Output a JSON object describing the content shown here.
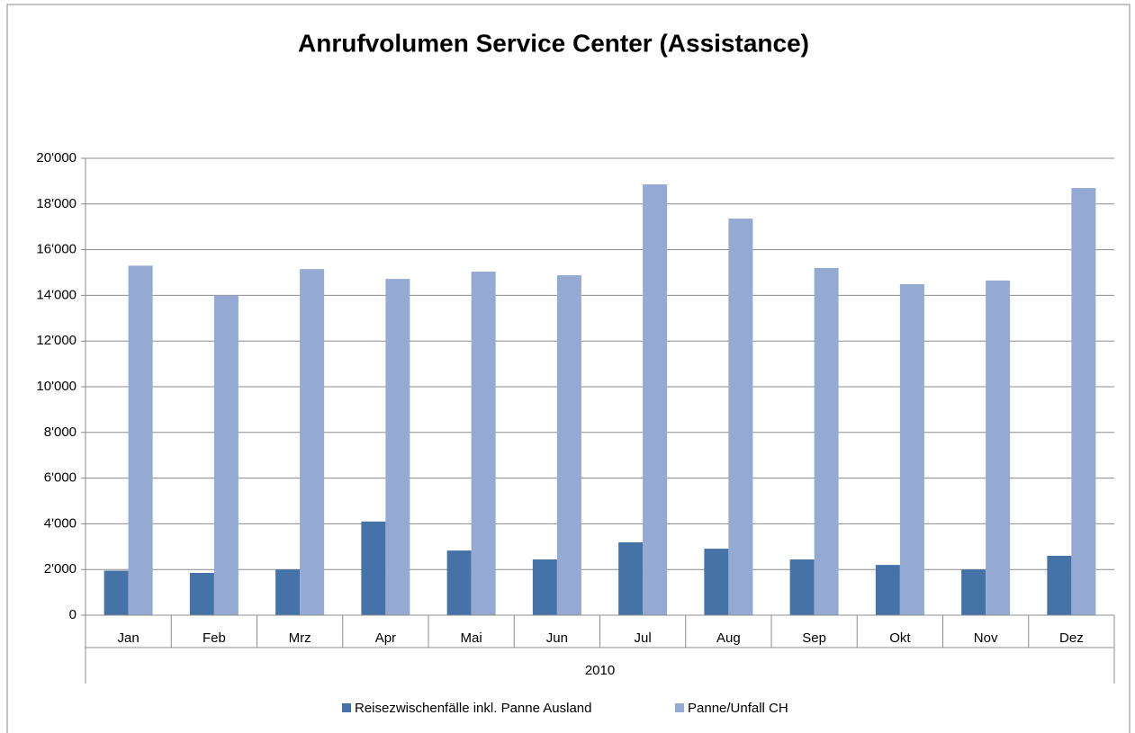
{
  "chart_data": {
    "type": "bar",
    "title": "Anrufvolumen Service Center (Assistance)",
    "categories": [
      "Jan",
      "Feb",
      "Mrz",
      "Apr",
      "Mai",
      "Jun",
      "Jul",
      "Aug",
      "Sep",
      "Okt",
      "Nov",
      "Dez"
    ],
    "x_group_label": "2010",
    "series": [
      {
        "name": "Reisezwischenfälle inkl. Panne Ausland",
        "color": "#4573a7",
        "values": [
          1950,
          1850,
          2000,
          4100,
          2830,
          2440,
          3190,
          2910,
          2440,
          2200,
          2000,
          2600
        ]
      },
      {
        "name": "Panne/Unfall CH",
        "color": "#94aad3",
        "values": [
          15300,
          14000,
          15150,
          14720,
          15040,
          14880,
          18860,
          17360,
          15200,
          14490,
          14650,
          18700
        ]
      }
    ],
    "ylim": [
      0,
      20000
    ],
    "yticks": [
      0,
      {
        "value": 2000,
        "label": "2'000"
      },
      {
        "value": 4000,
        "label": "4'000"
      },
      {
        "value": 6000,
        "label": "6'000"
      },
      {
        "value": 8000,
        "label": "8'000"
      },
      {
        "value": 10000,
        "label": "10'000"
      },
      {
        "value": 12000,
        "label": "12'000"
      },
      {
        "value": 14000,
        "label": "14'000"
      },
      {
        "value": 16000,
        "label": "16'000"
      },
      {
        "value": 18000,
        "label": "18'000"
      },
      {
        "value": 20000,
        "label": "20'000"
      }
    ],
    "grid": true,
    "legend": "bottom"
  }
}
